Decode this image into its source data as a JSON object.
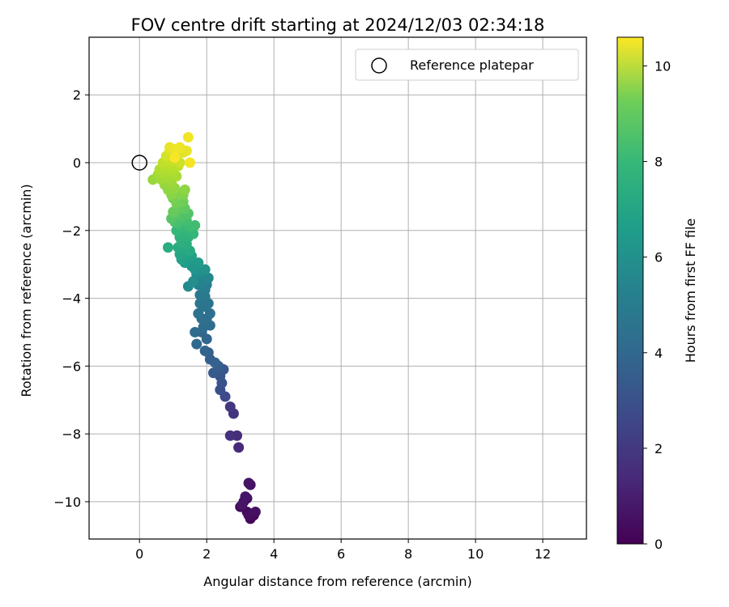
{
  "chart_data": {
    "type": "scatter",
    "title": "FOV centre drift starting at 2024/12/03 02:34:18",
    "xlabel": "Angular distance from reference (arcmin)",
    "ylabel": "Rotation from reference (arcmin)",
    "xlim": [
      -1.5,
      13.3
    ],
    "ylim": [
      -11.1,
      3.7
    ],
    "xticks": [
      0,
      2,
      4,
      6,
      8,
      10,
      12
    ],
    "yticks": [
      2,
      0,
      -2,
      -4,
      -6,
      -8,
      -10
    ],
    "ytick_labels": [
      "2",
      "0",
      "−2",
      "−4",
      "−6",
      "−8",
      "−10"
    ],
    "grid": true,
    "legend": {
      "position": "top-right",
      "label": "Reference platepar",
      "marker": "open-circle"
    },
    "reference_point": {
      "x": 0,
      "y": 0
    },
    "colormap": "viridis",
    "colorbar": {
      "label": "Hours from first FF file",
      "min": 0,
      "max": 10.6,
      "ticks": [
        0,
        2,
        4,
        6,
        8,
        10
      ]
    },
    "points": [
      [
        3.3,
        -10.5,
        0.1
      ],
      [
        3.4,
        -10.4,
        0.15
      ],
      [
        3.2,
        -10.3,
        0.2
      ],
      [
        3.0,
        -10.15,
        0.25
      ],
      [
        3.1,
        -10.0,
        0.3
      ],
      [
        3.2,
        -9.9,
        0.35
      ],
      [
        3.25,
        -10.4,
        0.4
      ],
      [
        3.45,
        -10.3,
        0.45
      ],
      [
        3.3,
        -9.5,
        0.5
      ],
      [
        3.25,
        -9.45,
        0.55
      ],
      [
        3.05,
        -10.1,
        0.6
      ],
      [
        3.15,
        -9.85,
        0.65
      ],
      [
        2.95,
        -8.4,
        1.3
      ],
      [
        2.9,
        -8.05,
        1.4
      ],
      [
        2.7,
        -8.05,
        1.5
      ],
      [
        2.8,
        -7.4,
        1.6
      ],
      [
        2.7,
        -7.2,
        1.7
      ],
      [
        2.55,
        -6.9,
        2.4
      ],
      [
        2.4,
        -6.7,
        2.6
      ],
      [
        2.45,
        -6.5,
        2.7
      ],
      [
        2.4,
        -6.3,
        2.8
      ],
      [
        2.5,
        -6.1,
        2.9
      ],
      [
        2.2,
        -6.2,
        3.0
      ],
      [
        2.35,
        -6.0,
        3.1
      ],
      [
        2.1,
        -5.8,
        3.2
      ],
      [
        2.25,
        -5.9,
        3.25
      ],
      [
        2.05,
        -5.6,
        3.3
      ],
      [
        1.95,
        -5.55,
        3.4
      ],
      [
        2.0,
        -5.2,
        3.5
      ],
      [
        1.85,
        -5.0,
        3.55
      ],
      [
        1.7,
        -5.35,
        3.6
      ],
      [
        1.65,
        -5.0,
        3.7
      ],
      [
        1.9,
        -4.85,
        3.75
      ],
      [
        2.1,
        -4.8,
        3.8
      ],
      [
        2.0,
        -4.6,
        3.85
      ],
      [
        1.85,
        -4.6,
        3.9
      ],
      [
        2.1,
        -4.45,
        3.95
      ],
      [
        1.75,
        -4.45,
        4.0
      ],
      [
        1.9,
        -4.25,
        4.05
      ],
      [
        1.8,
        -4.15,
        4.1
      ],
      [
        2.05,
        -4.15,
        4.15
      ],
      [
        1.95,
        -3.95,
        4.2
      ],
      [
        1.8,
        -3.9,
        4.3
      ],
      [
        1.95,
        -3.75,
        4.4
      ],
      [
        2.0,
        -3.6,
        4.5
      ],
      [
        1.75,
        -3.6,
        4.6
      ],
      [
        1.85,
        -3.5,
        4.7
      ],
      [
        1.9,
        -3.35,
        4.8
      ],
      [
        2.05,
        -3.4,
        4.9
      ],
      [
        1.7,
        -3.3,
        5.0
      ],
      [
        1.45,
        -3.65,
        5.1
      ],
      [
        1.6,
        -3.5,
        5.2
      ],
      [
        1.85,
        -3.2,
        5.3
      ],
      [
        1.95,
        -3.15,
        5.4
      ],
      [
        1.65,
        -3.15,
        5.5
      ],
      [
        1.55,
        -3.05,
        5.6
      ],
      [
        1.75,
        -2.95,
        5.7
      ],
      [
        1.45,
        -2.85,
        5.8
      ],
      [
        1.35,
        -2.95,
        5.9
      ],
      [
        1.55,
        -2.75,
        6.0
      ],
      [
        1.25,
        -2.85,
        6.05
      ],
      [
        1.4,
        -2.7,
        6.1
      ],
      [
        1.2,
        -2.7,
        6.2
      ],
      [
        1.3,
        -2.55,
        6.3
      ],
      [
        1.5,
        -2.6,
        6.4
      ],
      [
        1.15,
        -2.5,
        6.45
      ],
      [
        0.85,
        -2.5,
        6.5
      ],
      [
        1.4,
        -2.4,
        6.6
      ],
      [
        1.25,
        -2.35,
        6.7
      ],
      [
        1.45,
        -2.2,
        6.75
      ],
      [
        1.2,
        -2.2,
        6.8
      ],
      [
        1.35,
        -2.05,
        6.9
      ],
      [
        1.6,
        -2.1,
        7.0
      ],
      [
        1.1,
        -2.0,
        7.05
      ],
      [
        1.3,
        -1.9,
        7.1
      ],
      [
        1.5,
        -1.9,
        7.2
      ],
      [
        1.65,
        -1.85,
        7.3
      ],
      [
        1.15,
        -1.8,
        7.35
      ],
      [
        1.4,
        -1.7,
        7.4
      ],
      [
        1.05,
        -1.75,
        7.5
      ],
      [
        1.25,
        -1.6,
        7.6
      ],
      [
        1.45,
        -1.5,
        7.7
      ],
      [
        0.95,
        -1.65,
        7.75
      ],
      [
        1.1,
        -1.5,
        7.8
      ],
      [
        1.35,
        -1.35,
        7.9
      ],
      [
        1.2,
        -1.35,
        8.0
      ],
      [
        1.0,
        -1.45,
        8.1
      ],
      [
        1.3,
        -1.15,
        8.2
      ],
      [
        1.1,
        -1.2,
        8.3
      ],
      [
        1.0,
        -1.05,
        8.4
      ],
      [
        1.3,
        -0.95,
        8.5
      ],
      [
        1.2,
        -0.9,
        8.6
      ],
      [
        0.95,
        -0.95,
        8.7
      ],
      [
        1.35,
        -0.8,
        8.75
      ],
      [
        0.85,
        -0.8,
        8.8
      ],
      [
        1.05,
        -0.75,
        8.85
      ],
      [
        0.75,
        -0.65,
        8.9
      ],
      [
        0.4,
        -0.5,
        8.95
      ],
      [
        0.95,
        -0.6,
        9.0
      ],
      [
        0.65,
        -0.5,
        9.05
      ],
      [
        0.55,
        -0.35,
        9.1
      ],
      [
        0.85,
        -0.45,
        9.15
      ],
      [
        1.1,
        -0.4,
        9.2
      ],
      [
        0.7,
        -0.3,
        9.25
      ],
      [
        0.9,
        -0.25,
        9.3
      ],
      [
        0.6,
        -0.2,
        9.35
      ],
      [
        1.0,
        -0.2,
        9.4
      ],
      [
        0.8,
        -0.1,
        9.45
      ],
      [
        1.15,
        -0.1,
        9.5
      ],
      [
        0.9,
        0.0,
        9.55
      ],
      [
        0.7,
        0.0,
        9.6
      ],
      [
        1.0,
        0.05,
        9.65
      ],
      [
        0.85,
        0.1,
        9.7
      ],
      [
        1.1,
        0.1,
        9.75
      ],
      [
        1.2,
        0.0,
        9.8
      ],
      [
        0.95,
        0.2,
        9.85
      ],
      [
        0.8,
        0.2,
        9.9
      ],
      [
        1.05,
        0.25,
        9.95
      ],
      [
        1.15,
        0.3,
        10.0
      ],
      [
        0.9,
        0.35,
        10.05
      ],
      [
        1.3,
        0.3,
        10.1
      ],
      [
        1.0,
        0.4,
        10.15
      ],
      [
        1.4,
        0.35,
        10.2
      ],
      [
        0.9,
        0.45,
        10.25
      ],
      [
        1.2,
        0.45,
        10.3
      ],
      [
        1.1,
        0.4,
        10.35
      ],
      [
        1.45,
        0.75,
        10.4
      ],
      [
        1.5,
        0.0,
        10.45
      ],
      [
        1.05,
        0.15,
        10.5
      ]
    ]
  }
}
